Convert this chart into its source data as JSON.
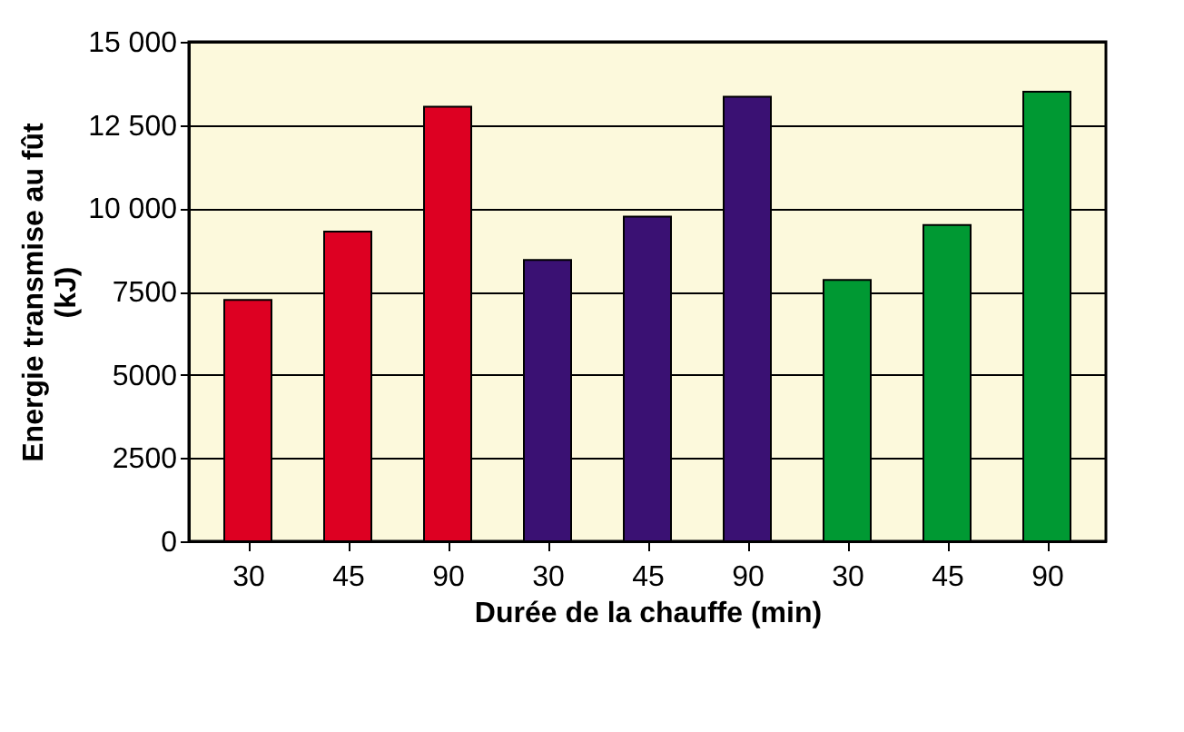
{
  "chart_data": {
    "type": "bar",
    "xlabel": "Durée de la chauffe (min)",
    "ylabel": "Energie transmise au fût (kJ)",
    "categories": [
      "30",
      "45",
      "90",
      "30",
      "45",
      "90",
      "30",
      "45",
      "90"
    ],
    "values": [
      7250,
      9300,
      13050,
      8450,
      9750,
      13350,
      7850,
      9500,
      13500
    ],
    "colors": [
      "#dd0022",
      "#dd0022",
      "#dd0022",
      "#3a1173",
      "#3a1173",
      "#3a1173",
      "#009933",
      "#009933",
      "#009933"
    ],
    "ylim": [
      0,
      15000
    ],
    "yticks": [
      0,
      2500,
      5000,
      7500,
      {
        "value": 10000,
        "label": "10 000"
      },
      {
        "value": 12500,
        "label": "12 500"
      },
      {
        "value": 15000,
        "label": "15 000"
      }
    ],
    "grid": "y"
  }
}
